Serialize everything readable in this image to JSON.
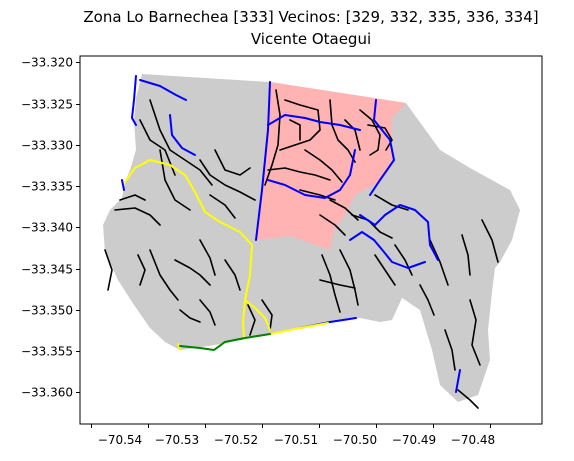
{
  "title": {
    "line1": "Zona Lo Barnechea [333] Vecinos: [329, 332, 335, 336, 334]",
    "line2": "Vicente Otaegui"
  },
  "colors": {
    "zone_fill": "#cccccc",
    "highlight_fill": "#ffb3b3",
    "street": "#000000",
    "boundary_blue": "#0000ff",
    "boundary_yellow": "#ffff00",
    "boundary_green": "#008000"
  },
  "axes": {
    "x_ticks": [
      "−70.54",
      "−70.53",
      "−70.52",
      "−70.51",
      "−70.50",
      "−70.49",
      "−70.48"
    ],
    "y_ticks": [
      "−33.320",
      "−33.325",
      "−33.330",
      "−33.335",
      "−33.340",
      "−33.345",
      "−33.350",
      "−33.355",
      "−33.360"
    ]
  }
}
